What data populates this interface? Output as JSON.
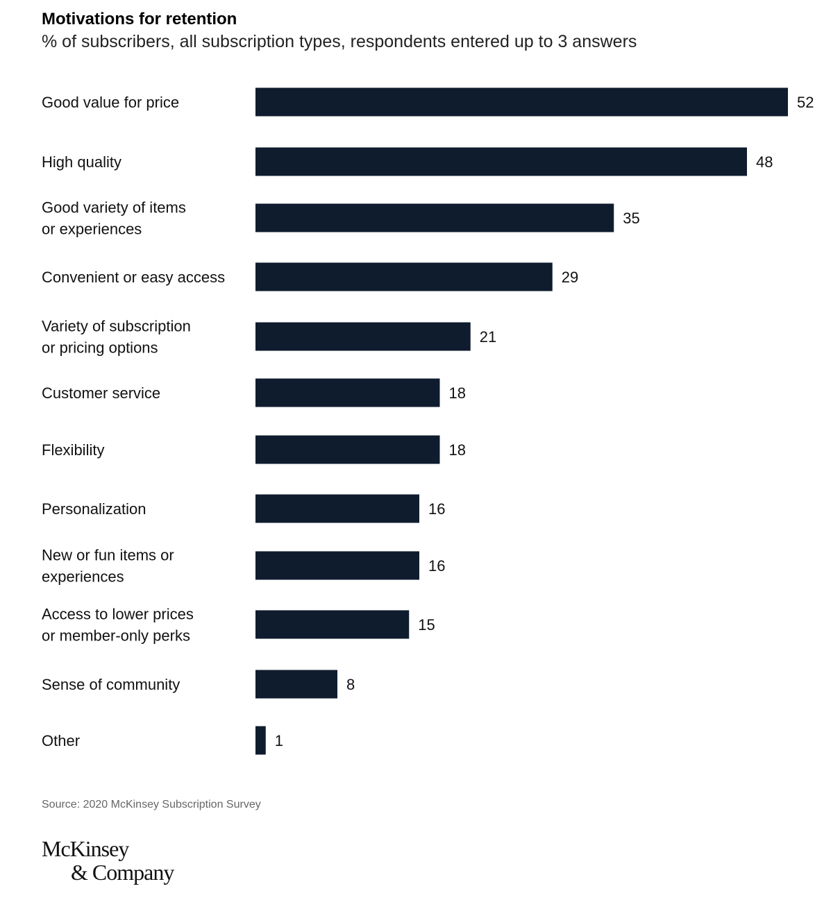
{
  "chart_data": {
    "type": "bar",
    "orientation": "horizontal",
    "title": "Motivations for retention",
    "subtitle": "% of subscribers, all subscription types, respondents entered up to 3 answers",
    "categories": [
      [
        "Good value for price"
      ],
      [
        "High quality"
      ],
      [
        "Good variety of items",
        "or experiences"
      ],
      [
        "Convenient or easy access"
      ],
      [
        "Variety of subscription",
        "or pricing options"
      ],
      [
        "Customer service"
      ],
      [
        "Flexibility"
      ],
      [
        "Personalization"
      ],
      [
        "New or fun items or",
        "experiences"
      ],
      [
        "Access to lower prices",
        "or member-only perks"
      ],
      [
        "Sense of community"
      ],
      [
        "Other"
      ]
    ],
    "values": [
      52,
      48,
      35,
      29,
      21,
      18,
      18,
      16,
      16,
      15,
      8,
      1
    ],
    "xlim": [
      0,
      52
    ],
    "grid": false,
    "bar_color": "#0f1c2e"
  },
  "source": "Source: 2020 McKinsey Subscription Survey",
  "logo": {
    "line1": "McKinsey",
    "line2": "& Company"
  }
}
